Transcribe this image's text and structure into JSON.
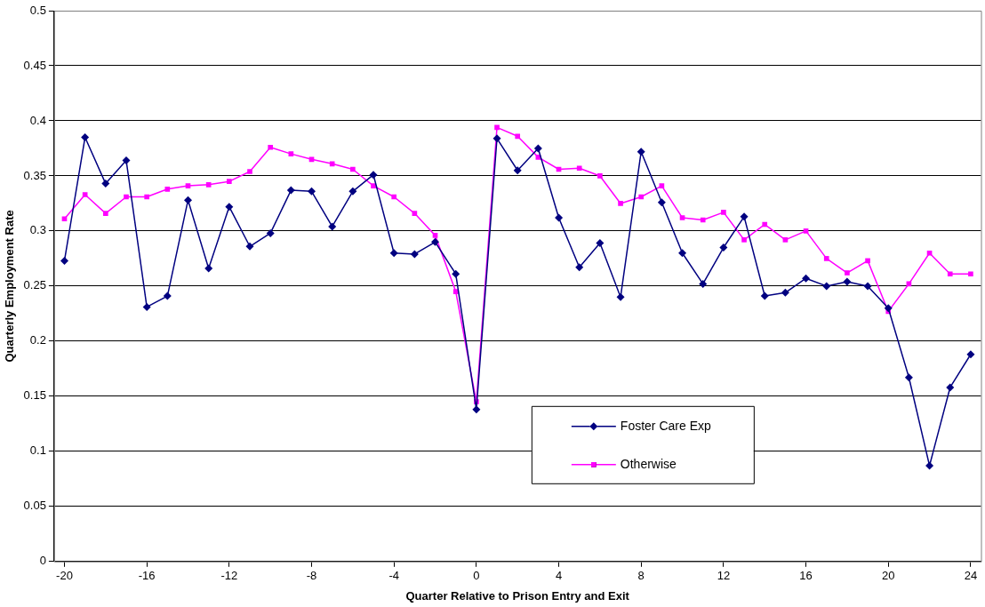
{
  "chart_data": {
    "type": "line",
    "xlabel": "Quarter Relative to Prison Entry and Exit",
    "ylabel": "Quarterly Employment Rate",
    "x": [
      -20,
      -19,
      -18,
      -17,
      -16,
      -15,
      -14,
      -13,
      -12,
      -11,
      -10,
      -9,
      -8,
      -7,
      -6,
      -5,
      -4,
      -3,
      -2,
      -1,
      0,
      1,
      2,
      3,
      4,
      5,
      6,
      7,
      8,
      9,
      10,
      11,
      12,
      13,
      14,
      15,
      16,
      17,
      18,
      19,
      20,
      21,
      22,
      23,
      24
    ],
    "series": [
      {
        "name": "Foster Care Exp",
        "color": "#000080",
        "marker": "diamond",
        "values": [
          0.273,
          0.385,
          0.343,
          0.364,
          0.231,
          0.241,
          0.328,
          0.266,
          0.322,
          0.286,
          0.298,
          0.337,
          0.336,
          0.304,
          0.336,
          0.351,
          0.28,
          0.279,
          0.29,
          0.261,
          0.138,
          0.384,
          0.355,
          0.375,
          0.312,
          0.267,
          0.289,
          0.24,
          0.372,
          0.326,
          0.28,
          0.252,
          0.285,
          0.313,
          0.241,
          0.244,
          0.257,
          0.25,
          0.254,
          0.25,
          0.23,
          0.167,
          0.087,
          0.158,
          0.188
        ]
      },
      {
        "name": "Otherwise",
        "color": "#ff00ff",
        "marker": "square",
        "values": [
          0.311,
          0.333,
          0.316,
          0.331,
          0.331,
          0.338,
          0.341,
          0.342,
          0.345,
          0.354,
          0.376,
          0.37,
          0.365,
          0.361,
          0.356,
          0.341,
          0.331,
          0.316,
          0.296,
          0.245,
          0.145,
          0.394,
          0.386,
          0.367,
          0.356,
          0.357,
          0.35,
          0.325,
          0.331,
          0.341,
          0.312,
          0.31,
          0.317,
          0.292,
          0.306,
          0.292,
          0.3,
          0.275,
          0.262,
          0.273,
          0.227,
          0.252,
          0.28,
          0.261,
          0.261
        ]
      }
    ],
    "xlim": [
      -20.5,
      24.5
    ],
    "xticks": [
      -20,
      -16,
      -12,
      -8,
      -4,
      0,
      4,
      8,
      12,
      16,
      20,
      24
    ],
    "ylim": [
      0,
      0.5
    ],
    "yticks": [
      0,
      0.05,
      0.1,
      0.15,
      0.2,
      0.25,
      0.3,
      0.35,
      0.4,
      0.45,
      0.5
    ],
    "grid": "y",
    "legend": "bottom right",
    "line_style": "solid"
  }
}
